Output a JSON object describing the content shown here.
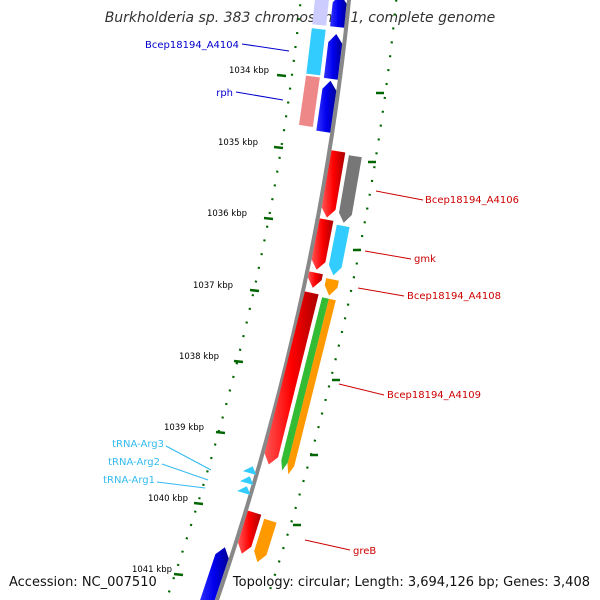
{
  "title": "Burkholderia sp. 383 chromosome 1, complete genome",
  "accession": "Accession: NC_007510",
  "topology": "Topology: circular; Length: 3,694,126 bp; Genes: 3,408",
  "ticks": [
    {
      "label": "1034 kbp",
      "kbp": 1034
    },
    {
      "label": "1035 kbp",
      "kbp": 1035
    },
    {
      "label": "1036 kbp",
      "kbp": 1036
    },
    {
      "label": "1037 kbp",
      "kbp": 1037
    },
    {
      "label": "1038 kbp",
      "kbp": 1038
    },
    {
      "label": "1039 kbp",
      "kbp": 1039
    },
    {
      "label": "1040 kbp",
      "kbp": 1040
    },
    {
      "label": "1041 kbp",
      "kbp": 1041
    }
  ],
  "genes": [
    {
      "label": "Bcep18194_A4104",
      "strand": "-",
      "color": "#0000cc"
    },
    {
      "label": "rph",
      "strand": "-",
      "color": "#0000cc"
    },
    {
      "label": "Bcep18194_A4106",
      "strand": "+",
      "color": "#cc0000"
    },
    {
      "label": "gmk",
      "strand": "+",
      "color": "#cc0000"
    },
    {
      "label": "Bcep18194_A4108",
      "strand": "+",
      "color": "#cc0000"
    },
    {
      "label": "Bcep18194_A4109",
      "strand": "+",
      "color": "#cc0000"
    },
    {
      "label": "tRNA-Arg3",
      "strand": "-",
      "color": "#33bbee"
    },
    {
      "label": "tRNA-Arg2",
      "strand": "-",
      "color": "#33bbee"
    },
    {
      "label": "tRNA-Arg1",
      "strand": "-",
      "color": "#33bbee"
    },
    {
      "label": "greB",
      "strand": "+",
      "color": "#cc0000"
    }
  ],
  "colors": {
    "backbone": "#888888",
    "forward_cds": "#ff0000",
    "reverse_cds": "#0000ee",
    "trna": "#33ccff",
    "cog_light_blue": "#33ccff",
    "cog_pink": "#ee8888",
    "cog_gray": "#777777",
    "cog_orange": "#ff9900",
    "cog_green": "#33bb33",
    "gc_dots": "#006600"
  }
}
